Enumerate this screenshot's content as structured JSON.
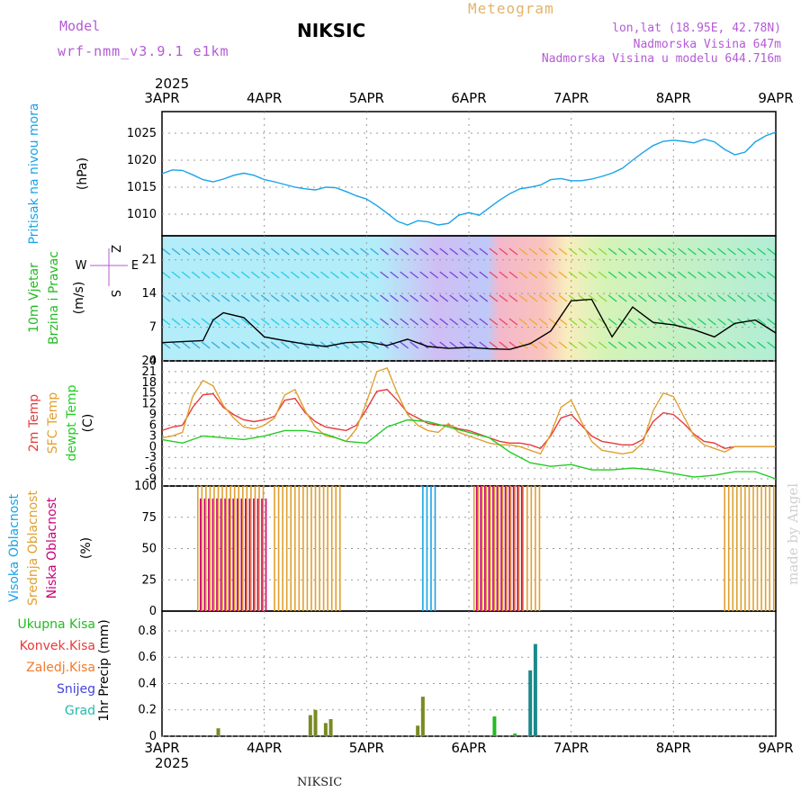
{
  "header": {
    "model_label": "Model",
    "model_name": "wrf-nmm_v3.9.1 e1km",
    "title": "NIKSIC",
    "meteogram": "Meteogram",
    "lonlat": "lon,lat (18.95E, 42.78N)",
    "elevation": "Nadmorska Visina 647m",
    "elevation_model": "Nadmorska Visina u modelu 644.716m",
    "credit": "made by Angel",
    "footer": "NIKSIC"
  },
  "colors": {
    "pressure": "#1aa3e8",
    "temp2m": "#e83a3a",
    "sfc_temp": "#e0a030",
    "dewpt": "#22cc22",
    "high_cloud": "#1aa3e8",
    "mid_cloud": "#e0a030",
    "low_cloud": "#cc0077",
    "total_precip": "#22bb22",
    "conv_precip": "#e83a3a",
    "frz_precip": "#f07b2a",
    "snow": "#4444dd",
    "graupel": "#22bbaa",
    "label_purple": "#b45ad6"
  },
  "chart_data": {
    "type": "line",
    "x_axis": {
      "year_label": "2025",
      "dates": [
        "3APR",
        "4APR",
        "5APR",
        "6APR",
        "7APR",
        "8APR",
        "9APR"
      ]
    },
    "panels": [
      {
        "id": "pressure",
        "ylabel": [
          "Pritisak na nivou mora",
          "(hPa)"
        ],
        "ticks": [
          1010,
          1015,
          1020,
          1025
        ],
        "ylim": [
          1006,
          1029
        ],
        "series": [
          {
            "name": "Pritisak na nivou mora",
            "x": [
              0.0,
              0.1,
              0.2,
              0.3,
              0.4,
              0.5,
              0.6,
              0.7,
              0.8,
              0.9,
              1.0,
              1.1,
              1.2,
              1.3,
              1.4,
              1.5,
              1.6,
              1.7,
              1.8,
              1.9,
              2.0,
              2.1,
              2.2,
              2.3,
              2.4,
              2.5,
              2.6,
              2.7,
              2.8,
              2.9,
              3.0,
              3.1,
              3.2,
              3.3,
              3.4,
              3.5,
              3.6,
              3.7,
              3.8,
              3.9,
              4.0,
              4.1,
              4.2,
              4.3,
              4.4,
              4.5,
              4.6,
              4.7,
              4.8,
              4.9,
              5.0,
              5.1,
              5.2,
              5.3,
              5.4,
              5.5,
              5.6,
              5.7,
              5.8,
              5.9,
              6.0
            ],
            "y": [
              1017.5,
              1018.2,
              1018.1,
              1017.3,
              1016.4,
              1016.0,
              1016.5,
              1017.2,
              1017.6,
              1017.2,
              1016.4,
              1016.0,
              1015.5,
              1015.0,
              1014.7,
              1014.5,
              1015.0,
              1014.9,
              1014.2,
              1013.4,
              1012.8,
              1011.6,
              1010.2,
              1008.7,
              1008.0,
              1008.8,
              1008.6,
              1008.0,
              1008.3,
              1009.8,
              1010.3,
              1009.8,
              1011.2,
              1012.6,
              1013.8,
              1014.7,
              1015.0,
              1015.4,
              1016.4,
              1016.6,
              1016.2,
              1016.2,
              1016.5,
              1017.0,
              1017.6,
              1018.5,
              1020.0,
              1021.4,
              1022.7,
              1023.5,
              1023.7,
              1023.5,
              1023.2,
              1023.9,
              1023.4,
              1022.0,
              1021.0,
              1021.5,
              1023.4,
              1024.5,
              1025.2
            ]
          }
        ]
      },
      {
        "id": "wind",
        "ylabel": [
          "10m Vjetar",
          "Brzina i Pravac",
          "(m/s)"
        ],
        "legend_compass": [
          "Z",
          "E",
          "W",
          "S"
        ],
        "ticks": [
          0,
          7,
          14,
          21
        ],
        "ylim": [
          0,
          26
        ],
        "series": [
          {
            "name": "10m Vjetar",
            "x": [
              0.0,
              0.2,
              0.4,
              0.5,
              0.6,
              0.8,
              1.0,
              1.2,
              1.4,
              1.6,
              1.8,
              2.0,
              2.2,
              2.4,
              2.6,
              2.8,
              3.0,
              3.2,
              3.4,
              3.6,
              3.8,
              4.0,
              4.2,
              4.4,
              4.6,
              4.8,
              5.0,
              5.2,
              5.4,
              5.6,
              5.8,
              6.0
            ],
            "y": [
              3.8,
              4.0,
              4.2,
              8.5,
              10.0,
              9.0,
              5.0,
              4.2,
              3.5,
              3.0,
              3.8,
              4.0,
              3.2,
              4.5,
              3.0,
              2.6,
              2.8,
              2.5,
              2.4,
              3.6,
              6.2,
              12.5,
              12.8,
              5.0,
              11.2,
              8.0,
              7.5,
              6.5,
              5.0,
              7.8,
              8.5,
              5.8
            ]
          }
        ]
      },
      {
        "id": "temperature",
        "ylabel": [
          "2m Temp",
          "SFC Temp",
          "dewpt Temp",
          "(C)"
        ],
        "ticks": [
          -9,
          -6,
          -3,
          0,
          3,
          6,
          9,
          12,
          15,
          18,
          21,
          24
        ],
        "ylim": [
          -11,
          24
        ],
        "series": [
          {
            "name": "2m Temp",
            "x": [
              0.0,
              0.1,
              0.2,
              0.3,
              0.4,
              0.5,
              0.6,
              0.7,
              0.8,
              0.9,
              1.0,
              1.1,
              1.2,
              1.3,
              1.4,
              1.5,
              1.6,
              1.7,
              1.8,
              1.9,
              2.0,
              2.1,
              2.2,
              2.3,
              2.4,
              2.5,
              2.6,
              2.7,
              2.8,
              2.9,
              3.0,
              3.1,
              3.2,
              3.3,
              3.4,
              3.5,
              3.6,
              3.7,
              3.8,
              3.9,
              4.0,
              4.1,
              4.2,
              4.3,
              4.4,
              4.5,
              4.6,
              4.7,
              4.8,
              4.9,
              5.0,
              5.1,
              5.2,
              5.3,
              5.4,
              5.5,
              5.6,
              5.7,
              5.8,
              5.9,
              6.0
            ],
            "y": [
              4.5,
              5.5,
              6.0,
              11.0,
              14.5,
              14.8,
              11.0,
              9.0,
              7.5,
              7.0,
              7.5,
              8.5,
              13.0,
              13.5,
              9.5,
              7.0,
              5.5,
              5.0,
              4.5,
              6.0,
              10.5,
              15.5,
              16.0,
              13.0,
              9.5,
              8.0,
              6.5,
              6.0,
              6.0,
              5.0,
              4.5,
              3.5,
              2.5,
              1.5,
              1.0,
              1.0,
              0.5,
              -0.5,
              3.0,
              8.0,
              9.0,
              6.0,
              3.0,
              1.5,
              1.0,
              0.5,
              0.5,
              2.0,
              7.0,
              9.5,
              9.0,
              6.5,
              3.5,
              1.5,
              1.0,
              -0.5,
              0,
              0,
              0,
              0,
              0
            ]
          },
          {
            "name": "SFC Temp",
            "x": [
              0.0,
              0.1,
              0.2,
              0.3,
              0.4,
              0.5,
              0.6,
              0.7,
              0.8,
              0.9,
              1.0,
              1.1,
              1.2,
              1.3,
              1.4,
              1.5,
              1.6,
              1.7,
              1.8,
              1.9,
              2.0,
              2.1,
              2.2,
              2.3,
              2.4,
              2.5,
              2.6,
              2.7,
              2.8,
              2.9,
              3.0,
              3.1,
              3.2,
              3.3,
              3.4,
              3.5,
              3.6,
              3.7,
              3.8,
              3.9,
              4.0,
              4.1,
              4.2,
              4.3,
              4.4,
              4.5,
              4.6,
              4.7,
              4.8,
              4.9,
              5.0,
              5.1,
              5.2,
              5.3,
              5.4,
              5.5,
              5.6,
              5.7,
              5.8,
              5.9,
              6.0
            ],
            "y": [
              2.5,
              3.0,
              4.0,
              14.0,
              18.5,
              17.0,
              11.5,
              8.0,
              5.5,
              5.0,
              6.0,
              8.0,
              14.5,
              16.0,
              10.0,
              5.5,
              3.0,
              2.5,
              1.5,
              5.0,
              12.5,
              21.0,
              22.0,
              15.0,
              9.0,
              6.0,
              4.5,
              4.0,
              6.5,
              4.0,
              3.0,
              2.0,
              1.0,
              0.5,
              0.5,
              0.0,
              -1.0,
              -2.0,
              3.5,
              11.0,
              13.0,
              7.0,
              1.5,
              -1.0,
              -1.5,
              -2.0,
              -1.5,
              1.0,
              10.0,
              15.0,
              14.0,
              8.5,
              3.0,
              0.5,
              -0.5,
              -1.5,
              0,
              0,
              0,
              0,
              0
            ]
          },
          {
            "name": "dewpt Temp",
            "x": [
              0.0,
              0.2,
              0.4,
              0.6,
              0.8,
              1.0,
              1.2,
              1.4,
              1.6,
              1.8,
              2.0,
              2.2,
              2.4,
              2.6,
              2.8,
              3.0,
              3.2,
              3.4,
              3.6,
              3.8,
              4.0,
              4.2,
              4.4,
              4.6,
              4.8,
              5.0,
              5.2,
              5.4,
              5.6,
              5.8,
              6.0
            ],
            "y": [
              2.0,
              1.0,
              3.0,
              2.5,
              2.0,
              3.0,
              4.5,
              4.5,
              3.5,
              1.5,
              1.0,
              5.5,
              7.5,
              7.0,
              5.5,
              4.0,
              2.5,
              -1.5,
              -4.5,
              -5.5,
              -5.0,
              -6.5,
              -6.5,
              -6.0,
              -6.5,
              -7.5,
              -8.5,
              -8.0,
              -7.0,
              -7.0,
              -9.0
            ]
          }
        ]
      },
      {
        "id": "clouds",
        "ylabel": [
          "Visoka Oblacnost",
          "Srednja Oblacnost",
          "Niska Oblacnost",
          "(%)"
        ],
        "ticks": [
          0,
          25,
          50,
          75,
          100
        ],
        "ylim": [
          0,
          100
        ],
        "bar_groups": [
          {
            "name": "Srednja Oblacnost",
            "x_start": 0.35,
            "x_end": 1.0,
            "value": 100
          },
          {
            "name": "Srednja Oblacnost",
            "x_start": 1.1,
            "x_end": 1.75,
            "value": 100
          },
          {
            "name": "Niska Oblacnost",
            "x_start": 0.35,
            "x_end": 1.0,
            "value": 90
          },
          {
            "name": "Visoka Oblacnost",
            "x_start": 2.55,
            "x_end": 2.7,
            "value": 100
          },
          {
            "name": "Srednja Oblacnost",
            "x_start": 3.05,
            "x_end": 3.7,
            "value": 100
          },
          {
            "name": "Niska Oblacnost",
            "x_start": 3.05,
            "x_end": 3.5,
            "value": 100
          },
          {
            "name": "Srednja Oblacnost",
            "x_start": 5.5,
            "x_end": 6.0,
            "value": 100
          }
        ]
      },
      {
        "id": "precip",
        "ylabel": [
          "1hr Precip (mm)"
        ],
        "legend": [
          "Ukupna Kisa",
          "Konvek.Kisa",
          "Zaledj.Kisa",
          "Snijeg",
          "Grad"
        ],
        "ticks": [
          0,
          0.2,
          0.4,
          0.6,
          0.8
        ],
        "ylim": [
          0,
          0.95
        ],
        "bars": [
          {
            "x": 0.55,
            "value": 0.06
          },
          {
            "x": 1.45,
            "value": 0.16
          },
          {
            "x": 1.5,
            "value": 0.2
          },
          {
            "x": 1.6,
            "value": 0.1
          },
          {
            "x": 1.65,
            "value": 0.13
          },
          {
            "x": 2.5,
            "value": 0.08
          },
          {
            "x": 2.55,
            "value": 0.3
          },
          {
            "x": 3.25,
            "value": 0.15
          },
          {
            "x": 3.45,
            "value": 0.02
          },
          {
            "x": 3.6,
            "value": 0.5
          },
          {
            "x": 3.65,
            "value": 0.7
          }
        ]
      }
    ]
  }
}
